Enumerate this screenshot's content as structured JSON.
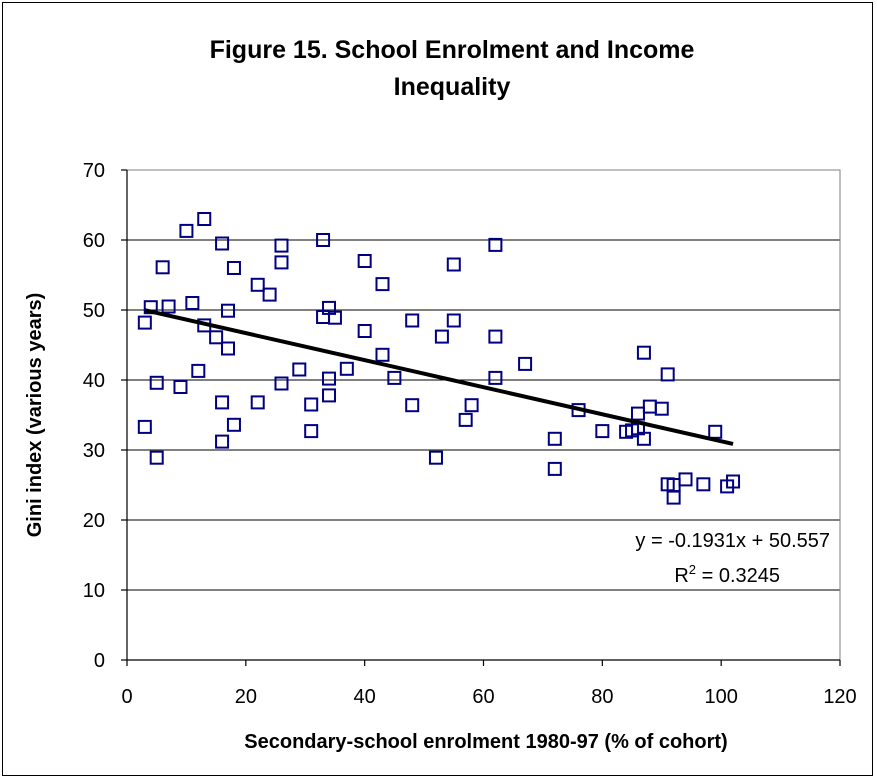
{
  "chart_data": {
    "type": "scatter",
    "title_line1": "Figure 15. School Enrolment and Income",
    "title_line2": "Inequality",
    "xlabel": "Secondary-school enrolment 1980-97 (% of cohort)",
    "ylabel": "Gini index (various years)",
    "xlim": [
      0,
      120
    ],
    "ylim": [
      0,
      70
    ],
    "x_ticks": [
      "0",
      "20",
      "40",
      "60",
      "80",
      "100",
      "120"
    ],
    "y_ticks": [
      "0",
      "10",
      "20",
      "30",
      "40",
      "50",
      "60",
      "70"
    ],
    "grid": "horizontal",
    "legend": "none",
    "marker": "hollow-square",
    "marker_color": "#000080",
    "trendline": {
      "slope": -0.1931,
      "intercept": 50.557,
      "x_from": 3,
      "x_to": 102,
      "color": "#000000"
    },
    "equation": "y = -0.1931x + 50.557",
    "r2_prefix": "R",
    "r2_sup": "2",
    "r2_rest": " = 0.3245",
    "points": [
      [
        3,
        48.2
      ],
      [
        3,
        33.3
      ],
      [
        4,
        50.4
      ],
      [
        5,
        39.6
      ],
      [
        5,
        28.9
      ],
      [
        6,
        56.1
      ],
      [
        7,
        50.5
      ],
      [
        9,
        39.0
      ],
      [
        10,
        61.3
      ],
      [
        11,
        51.0
      ],
      [
        12,
        41.3
      ],
      [
        13,
        63.0
      ],
      [
        13,
        47.8
      ],
      [
        15,
        46.1
      ],
      [
        16,
        59.5
      ],
      [
        16,
        36.8
      ],
      [
        16,
        31.2
      ],
      [
        17,
        49.9
      ],
      [
        17,
        44.5
      ],
      [
        18,
        56.0
      ],
      [
        18,
        33.6
      ],
      [
        22,
        53.6
      ],
      [
        22,
        36.8
      ],
      [
        24,
        52.2
      ],
      [
        26,
        59.2
      ],
      [
        26,
        56.8
      ],
      [
        26,
        39.5
      ],
      [
        29,
        41.5
      ],
      [
        31,
        36.5
      ],
      [
        31,
        32.7
      ],
      [
        33,
        60.0
      ],
      [
        33,
        49.0
      ],
      [
        34,
        50.3
      ],
      [
        34,
        40.2
      ],
      [
        34,
        37.8
      ],
      [
        35,
        48.9
      ],
      [
        37,
        41.6
      ],
      [
        40,
        57.0
      ],
      [
        40,
        47.0
      ],
      [
        43,
        53.7
      ],
      [
        43,
        43.6
      ],
      [
        45,
        40.3
      ],
      [
        48,
        48.5
      ],
      [
        48,
        36.4
      ],
      [
        52,
        28.9
      ],
      [
        53,
        46.2
      ],
      [
        55,
        56.5
      ],
      [
        55,
        48.5
      ],
      [
        57,
        34.3
      ],
      [
        58,
        36.4
      ],
      [
        62,
        59.3
      ],
      [
        62,
        46.2
      ],
      [
        62,
        40.3
      ],
      [
        67,
        42.3
      ],
      [
        72,
        31.6
      ],
      [
        72,
        27.3
      ],
      [
        76,
        35.7
      ],
      [
        80,
        32.7
      ],
      [
        84,
        32.6
      ],
      [
        85,
        32.8
      ],
      [
        86,
        35.2
      ],
      [
        86,
        33.1
      ],
      [
        87,
        43.9
      ],
      [
        87,
        31.6
      ],
      [
        88,
        36.2
      ],
      [
        90,
        35.9
      ],
      [
        91,
        40.8
      ],
      [
        91,
        25.1
      ],
      [
        92,
        25.0
      ],
      [
        92,
        23.2
      ],
      [
        94,
        25.8
      ],
      [
        97,
        25.1
      ],
      [
        99,
        32.6
      ],
      [
        101,
        24.8
      ],
      [
        102,
        25.5
      ]
    ]
  }
}
